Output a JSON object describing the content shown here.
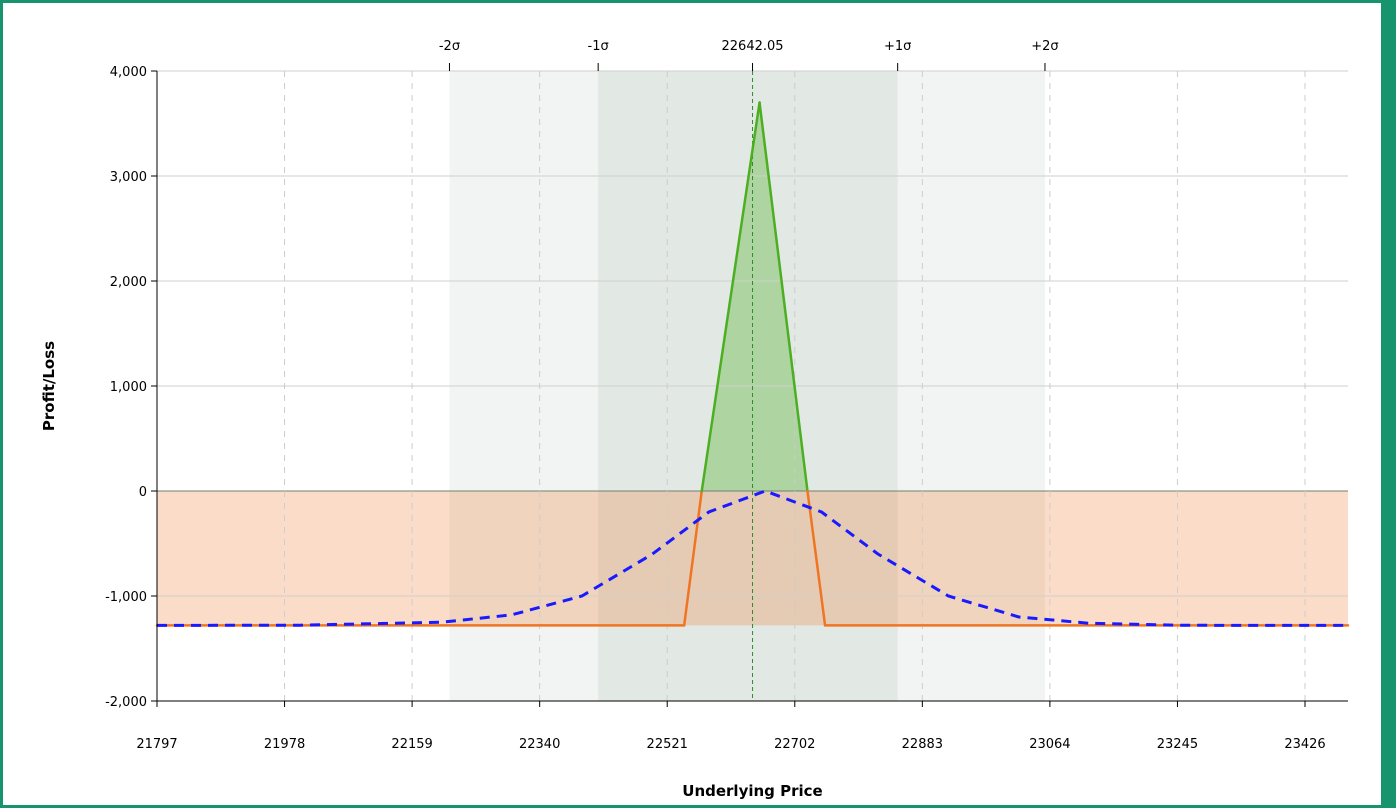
{
  "chart_data": {
    "type": "line",
    "xlabel": "Underlying Price",
    "ylabel": "Profit/Loss",
    "xlim": [
      21797,
      23487
    ],
    "ylim": [
      -2000,
      4000
    ],
    "x_ticks": [
      "21797",
      "21978",
      "22159",
      "22340",
      "22521",
      "22702",
      "22883",
      "23064",
      "23245",
      "23426"
    ],
    "y_ticks": [
      {
        "value": 4000,
        "label": "4,000"
      },
      {
        "value": 3000,
        "label": "3,000"
      },
      {
        "value": 2000,
        "label": "2,000"
      },
      {
        "value": 1000,
        "label": "1,000"
      },
      {
        "value": 0,
        "label": "0"
      },
      {
        "value": -1000,
        "label": "-1,000"
      },
      {
        "value": -2000,
        "label": "-2,000"
      }
    ],
    "current_price": 22642.05,
    "current_price_label": "22642.05",
    "sigma_bands": [
      {
        "label": "-2σ",
        "x": 22212
      },
      {
        "label": "-1σ",
        "x": 22423
      },
      {
        "label": "+1σ",
        "x": 22848
      },
      {
        "label": "+2σ",
        "x": 23057
      }
    ],
    "series": [
      {
        "id": "expiration",
        "color_profit": "#4caf22",
        "color_loss": "#f07522",
        "x": [
          21797,
          22545,
          22570,
          22652,
          22720,
          22745,
          23487
        ],
        "y": [
          -1280,
          -1280,
          0,
          3700,
          0,
          -1280,
          -1280
        ]
      },
      {
        "id": "today",
        "color": "#1a1aff",
        "style": "dashed",
        "x": [
          21797,
          22000,
          22200,
          22300,
          22400,
          22500,
          22580,
          22660,
          22740,
          22820,
          22920,
          23020,
          23120,
          23250,
          23487
        ],
        "y": [
          -1280,
          -1278,
          -1250,
          -1180,
          -1000,
          -600,
          -200,
          0,
          -200,
          -600,
          -1000,
          -1200,
          -1260,
          -1279,
          -1280
        ]
      }
    ],
    "grid": true
  }
}
